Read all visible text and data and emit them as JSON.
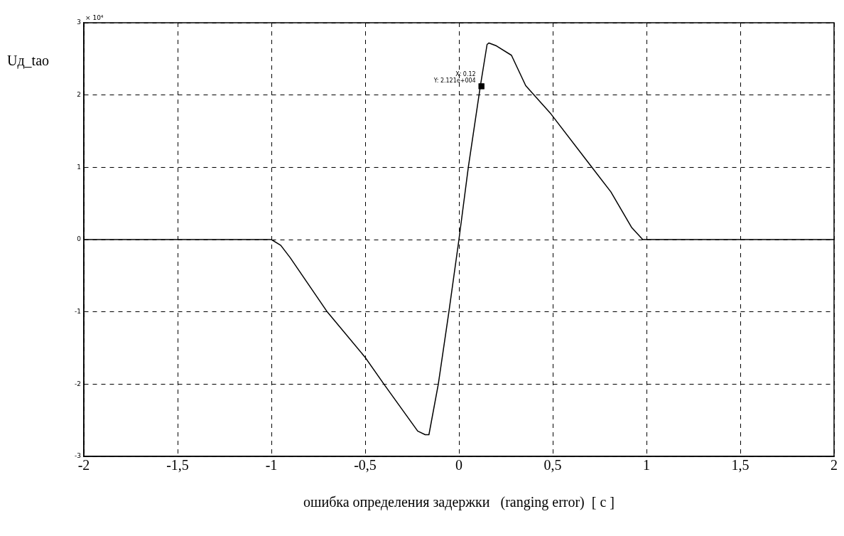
{
  "chart_data": {
    "type": "line",
    "xlabel": "ошибка определения задержки   (ranging error)  [ c ]",
    "ylabel": "Uд_tao",
    "x": [
      -2,
      -1,
      -0.95,
      -0.9,
      -0.705,
      -0.5,
      -0.4,
      -0.22,
      -0.18,
      -0.16,
      -0.11,
      -0.053,
      0,
      0.05,
      0.114,
      0.15,
      0.16,
      0.2,
      0.28,
      0.356,
      0.49,
      0.7,
      0.81,
      0.92,
      0.98,
      1,
      2
    ],
    "series": [
      {
        "color": "#000000",
        "values": [
          0,
          0,
          -0.08,
          -0.25,
          -0.99,
          -1.63,
          -2.0,
          -2.65,
          -2.7,
          -2.7,
          -2.0,
          -0.99,
          0,
          1.0,
          2.12,
          2.7,
          2.72,
          2.68,
          2.55,
          2.13,
          1.74,
          1.03,
          0.66,
          0.17,
          0,
          0,
          0
        ]
      }
    ],
    "xlim": [
      -2,
      2
    ],
    "xticks": [
      -2,
      {
        "value": -1.5,
        "label": "-1,5"
      },
      -1,
      {
        "value": -0.5,
        "label": "-0,5"
      },
      0,
      {
        "value": 0.5,
        "label": "0,5"
      },
      1,
      {
        "value": 1.5,
        "label": "1,5"
      },
      2
    ],
    "ylim": [
      -3,
      3
    ],
    "yticks": [
      -3,
      -2,
      -1,
      0,
      1,
      2,
      3
    ],
    "annotations": [
      "× 10⁴",
      {
        "text": "X: 0.12",
        "x": 0.12,
        "y": 2.121
      },
      {
        "text": "Y: 2.121e+004",
        "x": 0.12,
        "y": 2.121
      }
    ],
    "grid": true,
    "legend": false,
    "marker": "none",
    "line_style": "solid"
  }
}
